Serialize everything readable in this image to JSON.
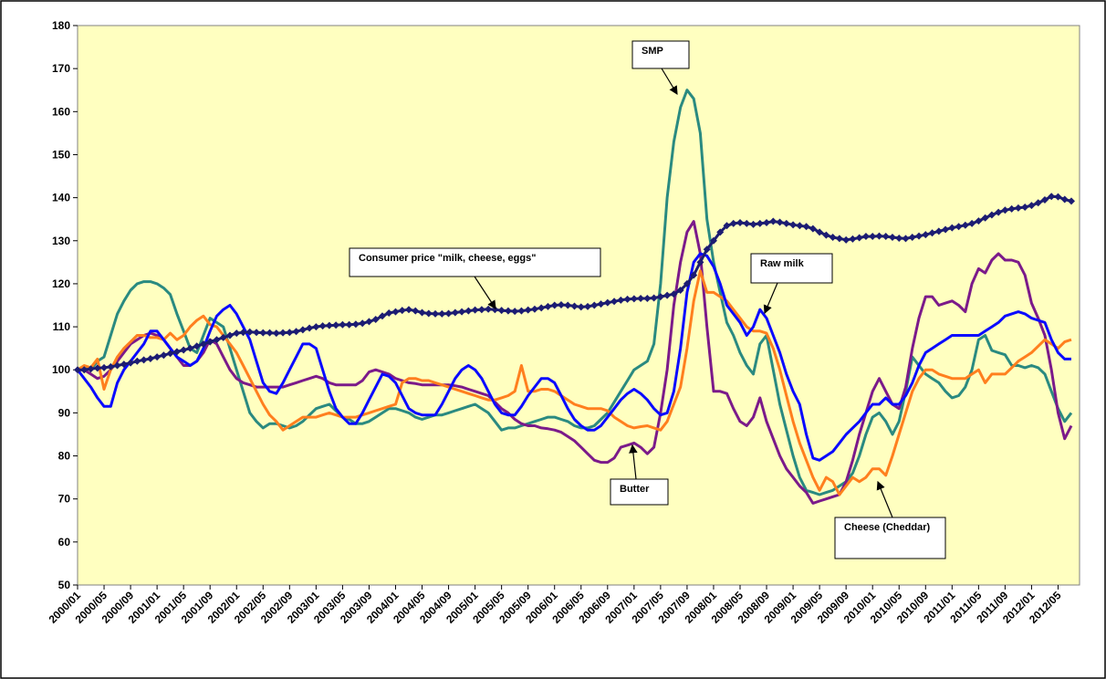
{
  "chart_data": {
    "type": "line",
    "categories": [
      "2000/01",
      null,
      null,
      null,
      "2000/05",
      null,
      null,
      null,
      "2000/09",
      null,
      null,
      null,
      "2001/01",
      null,
      null,
      null,
      "2001/05",
      null,
      null,
      null,
      "2001/09",
      null,
      null,
      null,
      "2002/01",
      null,
      null,
      null,
      "2002/05",
      null,
      null,
      null,
      "2002/09",
      null,
      null,
      null,
      "2003/01",
      null,
      null,
      null,
      "2003/05",
      null,
      null,
      null,
      "2003/09",
      null,
      null,
      null,
      "2004/01",
      null,
      null,
      null,
      "2004/05",
      null,
      null,
      null,
      "2004/09",
      null,
      null,
      null,
      "2005/01",
      null,
      null,
      null,
      "2005/05",
      null,
      null,
      null,
      "2005/09",
      null,
      null,
      null,
      "2006/01",
      null,
      null,
      null,
      "2006/05",
      null,
      null,
      null,
      "2006/09",
      null,
      null,
      null,
      "2007/01",
      null,
      null,
      null,
      "2007/05",
      null,
      null,
      null,
      "2007/09",
      null,
      null,
      null,
      "2008/01",
      null,
      null,
      null,
      "2008/05",
      null,
      null,
      null,
      "2008/09",
      null,
      null,
      null,
      "2009/01",
      null,
      null,
      null,
      "2009/05",
      null,
      null,
      null,
      "2009/09",
      null,
      null,
      null,
      "2010/01",
      null,
      null,
      null,
      "2010/05",
      null,
      null,
      null,
      "2010/09",
      null,
      null,
      null,
      "2011/01",
      null,
      null,
      null,
      "2011/05",
      null,
      null,
      null,
      "2011/09",
      null,
      null,
      null,
      "2012/01",
      null,
      null,
      null,
      "2012/05",
      null,
      null
    ],
    "ylim": [
      50,
      180
    ],
    "yticks": [
      50,
      60,
      70,
      80,
      90,
      100,
      110,
      120,
      130,
      140,
      150,
      160,
      170,
      180
    ],
    "grid": false,
    "series": [
      {
        "name": "SMP",
        "color": "#2a8a80",
        "values": [
          100,
          100.5,
          100,
          102,
          103,
          108,
          113,
          116,
          118.5,
          120,
          120.5,
          120.5,
          120,
          119,
          117.5,
          113,
          109,
          105,
          104,
          108,
          112,
          111,
          110,
          105,
          100,
          95,
          90,
          88,
          86.5,
          87.5,
          87.5,
          87,
          86.5,
          87,
          88,
          89.5,
          91,
          91.5,
          92,
          90.5,
          89,
          88.5,
          87.5,
          87.5,
          88,
          89,
          90,
          91,
          91,
          90.5,
          90,
          89,
          88.5,
          89,
          89.5,
          89.5,
          90,
          90.5,
          91,
          91.5,
          92,
          91,
          90,
          88,
          86,
          86.5,
          86.5,
          87,
          87.5,
          88,
          88.5,
          89,
          89,
          88.5,
          88,
          87,
          86.5,
          86.5,
          87,
          88.5,
          90,
          92.5,
          95,
          97.5,
          100,
          101,
          102,
          106,
          120,
          140,
          153,
          161,
          165,
          163,
          155,
          135,
          125,
          118,
          111,
          108,
          104,
          101,
          99,
          106,
          108,
          100,
          92,
          86,
          80,
          75,
          72,
          71.5,
          71,
          71.5,
          72,
          73,
          74,
          76,
          80,
          85,
          89,
          90,
          88,
          85,
          88,
          95,
          103,
          101,
          99,
          98,
          97,
          95,
          93.5,
          94,
          96,
          100,
          107,
          108,
          104.5,
          104,
          103.5,
          101,
          101,
          100.5,
          101,
          100.5,
          99,
          95,
          91,
          88,
          90
        ]
      },
      {
        "name": "Butter",
        "color": "#7b1a8a",
        "values": [
          100,
          100,
          99,
          98,
          98.5,
          100,
          102,
          104,
          106,
          107,
          108,
          108.5,
          108,
          107,
          105,
          103,
          101,
          101,
          102,
          104,
          107,
          106,
          103,
          100,
          98,
          97,
          96.5,
          96,
          96,
          96,
          96,
          96,
          96.5,
          97,
          97.5,
          98,
          98.5,
          98,
          97,
          96.5,
          96.5,
          96.5,
          96.5,
          97.5,
          99.5,
          100,
          99.5,
          99,
          98,
          97.5,
          97,
          96.8,
          96.5,
          96.5,
          96.5,
          96.5,
          96.5,
          96.3,
          96,
          95.5,
          95,
          94.5,
          94,
          92.5,
          91,
          90,
          88.5,
          87.5,
          87,
          87,
          86.5,
          86.3,
          86,
          85.5,
          84.5,
          83.5,
          82,
          80.5,
          79,
          78.5,
          78.5,
          79.5,
          82,
          82.5,
          83,
          82,
          80.5,
          82,
          90,
          100,
          115,
          125,
          132,
          134.5,
          127,
          110,
          95,
          95,
          94.5,
          91,
          88,
          87,
          89,
          93.5,
          88,
          84,
          80,
          77,
          75,
          73,
          71.5,
          69,
          69.5,
          70,
          70.5,
          71,
          74,
          79,
          85,
          90,
          95,
          98,
          95,
          92,
          91,
          96,
          105,
          112,
          117,
          117,
          115,
          115.5,
          116,
          115,
          113.5,
          120,
          123.5,
          122.5,
          125.5,
          127,
          125.5,
          125.5,
          125,
          122,
          115.5,
          112,
          108,
          100,
          90,
          84,
          87
        ]
      },
      {
        "name": "Cheese (Cheddar)",
        "color": "#ff7f1e",
        "values": [
          100,
          101,
          100.5,
          102.5,
          95.5,
          100,
          103,
          105,
          106.5,
          108,
          108,
          107.5,
          107.5,
          107,
          108.5,
          107,
          108,
          110,
          111.5,
          112.5,
          110.5,
          110,
          108,
          106,
          104,
          101,
          98,
          95,
          92,
          89.5,
          88,
          86,
          87,
          88,
          89,
          89,
          89,
          89.5,
          90,
          89.5,
          89,
          89,
          89,
          89.5,
          90,
          90.5,
          91,
          91.5,
          92,
          97,
          98,
          98,
          97.5,
          97.5,
          97,
          96.5,
          96,
          95.5,
          95,
          94.5,
          94,
          93.5,
          93,
          93,
          93.5,
          94,
          95,
          101,
          95,
          95,
          95.5,
          95.5,
          95,
          94,
          93,
          92,
          91.5,
          91,
          91,
          91,
          90.5,
          89,
          88,
          87,
          86.5,
          86.8,
          87,
          86.5,
          86,
          88,
          92,
          96,
          105,
          116,
          123,
          118,
          118,
          117,
          116,
          114,
          112,
          110,
          109,
          109,
          108.5,
          105,
          100,
          94,
          88,
          83,
          79,
          75,
          72,
          75,
          74,
          71,
          73,
          75,
          74,
          75,
          77,
          77,
          75.5,
          80,
          85,
          90,
          95,
          98,
          100,
          100,
          99,
          98.5,
          98,
          98,
          98,
          99,
          100,
          97,
          99,
          99,
          99,
          100.5,
          102,
          103,
          104,
          105.5,
          107,
          106,
          105,
          106.5,
          107
        ]
      },
      {
        "name": "Raw milk",
        "color": "#0a0aff",
        "values": [
          100,
          98,
          96,
          93.5,
          91.5,
          91.5,
          97,
          100,
          102,
          104,
          106,
          109,
          109,
          107,
          105,
          103,
          102,
          101,
          102,
          105,
          109,
          112.5,
          114,
          115,
          113,
          110,
          107,
          102,
          97,
          95,
          94.5,
          97,
          100,
          103,
          106,
          106,
          105,
          100,
          95,
          91,
          89,
          87.5,
          87.5,
          90,
          93,
          96,
          99,
          98.5,
          97,
          94,
          91,
          90,
          89.5,
          89.5,
          89.5,
          92,
          95,
          98,
          100,
          101,
          100,
          98,
          95,
          92,
          90,
          89.5,
          89.5,
          91.5,
          94,
          96,
          98,
          98,
          97,
          94,
          91,
          88.5,
          87,
          86,
          86,
          87,
          89,
          91,
          93,
          94.5,
          95.5,
          94.5,
          93,
          91,
          89.5,
          90,
          95,
          105,
          118,
          125,
          127,
          126.5,
          124,
          120,
          115,
          113,
          111,
          108,
          110,
          114,
          112,
          108,
          104,
          99,
          95,
          92,
          85,
          79.5,
          79,
          80,
          81,
          83,
          85,
          86.5,
          88,
          90,
          92,
          92,
          93.5,
          92,
          92,
          94,
          97,
          101,
          104,
          105,
          106,
          107,
          108,
          108,
          108,
          108,
          108,
          109,
          110,
          111,
          112.5,
          113,
          113.5,
          113,
          112,
          111.5,
          111,
          107,
          104,
          102.5,
          102.5
        ]
      },
      {
        "name": "Consumer price \"milk, cheese, eggs\"",
        "color": "#1c1c72",
        "markers": true,
        "values": [
          100,
          100,
          100.2,
          100.4,
          100.5,
          100.7,
          101,
          101.3,
          101.6,
          102,
          102.3,
          102.6,
          103,
          103.4,
          103.8,
          104.2,
          104.6,
          105,
          105.5,
          106,
          106.5,
          107,
          107.5,
          108,
          108.5,
          108.7,
          108.8,
          108.7,
          108.6,
          108.6,
          108.5,
          108.6,
          108.7,
          108.9,
          109.3,
          109.7,
          110,
          110.2,
          110.3,
          110.4,
          110.5,
          110.5,
          110.6,
          110.8,
          111.2,
          111.7,
          112.5,
          113.2,
          113.5,
          113.8,
          114,
          113.7,
          113.3,
          113.1,
          113,
          113,
          113.1,
          113.3,
          113.5,
          113.7,
          113.9,
          114,
          114.1,
          114,
          113.8,
          113.7,
          113.6,
          113.7,
          113.9,
          114.1,
          114.4,
          114.7,
          115,
          115.1,
          115,
          114.8,
          114.6,
          114.7,
          115,
          115.3,
          115.6,
          115.9,
          116.2,
          116.4,
          116.5,
          116.6,
          116.6,
          116.7,
          117,
          117.3,
          117.6,
          118.5,
          120,
          122,
          125,
          128,
          130,
          132,
          133.5,
          134,
          134.2,
          134,
          133.8,
          134,
          134.2,
          134.5,
          134.3,
          134,
          133.7,
          133.5,
          133.3,
          132.8,
          132,
          131.3,
          130.8,
          130.5,
          130.2,
          130.4,
          130.7,
          131,
          131,
          131.1,
          131,
          130.8,
          130.6,
          130.5,
          130.8,
          131.1,
          131.4,
          131.8,
          132.2,
          132.6,
          133,
          133.3,
          133.6,
          134,
          134.6,
          135.3,
          136,
          136.6,
          137.1,
          137.4,
          137.6,
          137.8,
          138.2,
          138.8,
          139.5,
          140.3,
          140.2,
          139.6,
          139.2
        ]
      }
    ]
  }
}
